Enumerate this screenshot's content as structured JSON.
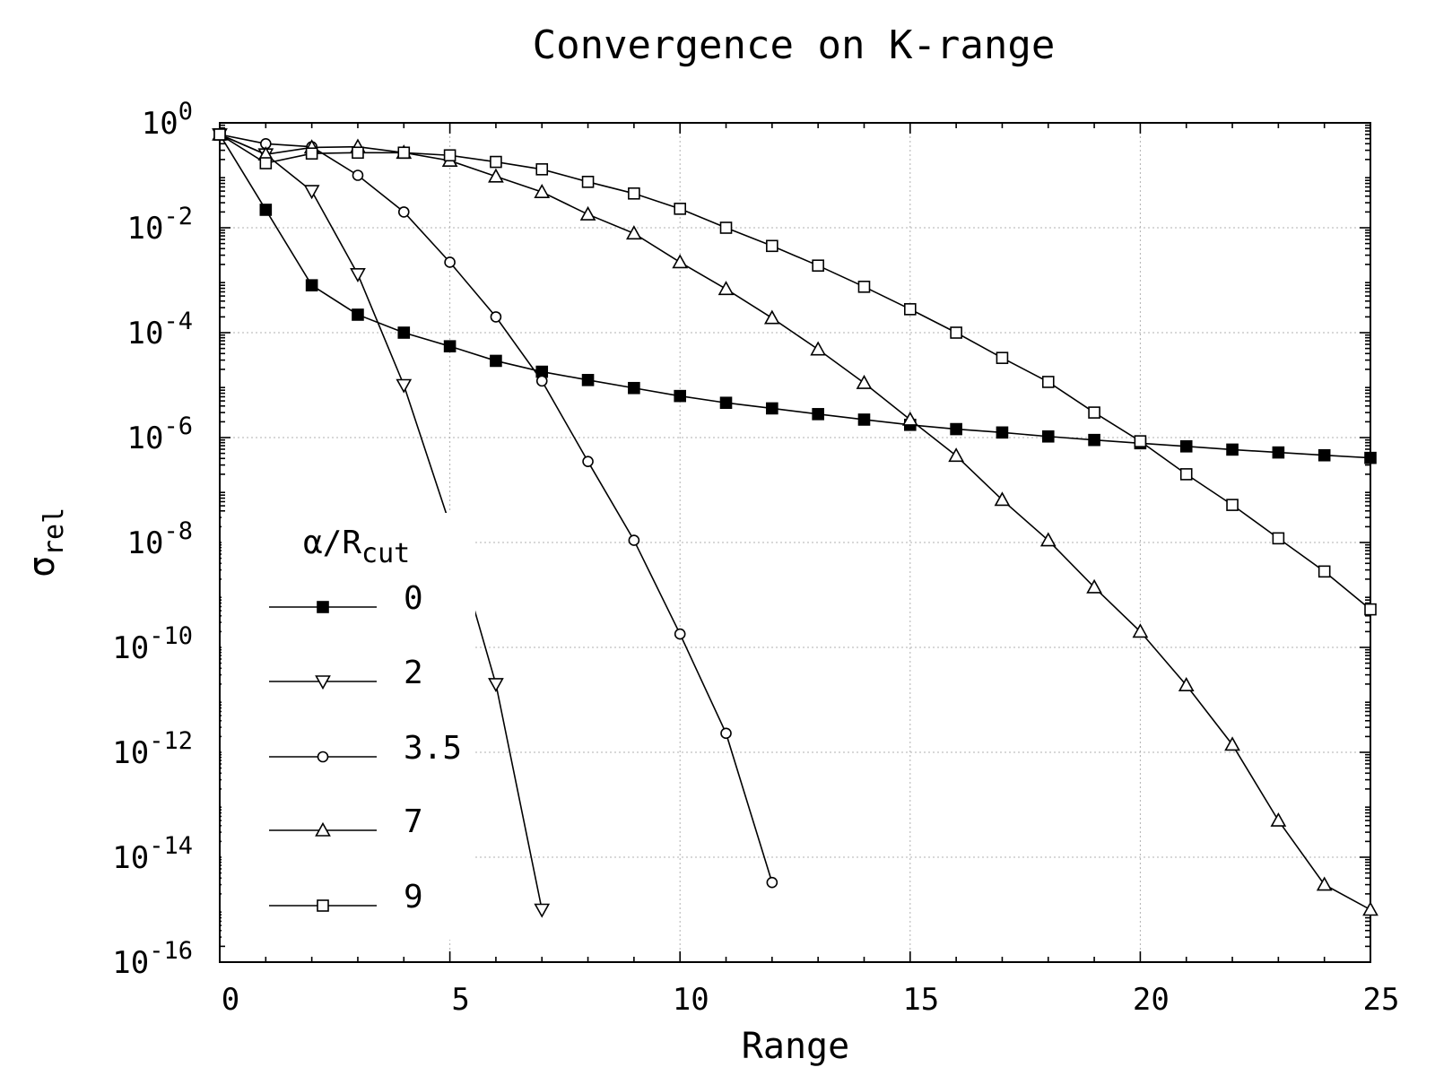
{
  "chart_data": {
    "type": "line",
    "title": "Convergence on K-range",
    "xlabel": "Range",
    "ylabel": {
      "main": "σ",
      "sub": "rel"
    },
    "xlim": [
      0,
      25
    ],
    "ylim": [
      1e-16,
      1
    ],
    "yscale": "log",
    "grid": true,
    "x_ticks": [
      "0",
      "5",
      "10",
      "15",
      "20",
      "25"
    ],
    "y_ticks": [
      {
        "value": 1,
        "base": "10",
        "exp": "0"
      },
      {
        "value": 0.01,
        "base": "10",
        "exp": "-2"
      },
      {
        "value": 0.0001,
        "base": "10",
        "exp": "-4"
      },
      {
        "value": 1e-06,
        "base": "10",
        "exp": "-6"
      },
      {
        "value": 1e-08,
        "base": "10",
        "exp": "-8"
      },
      {
        "value": 1e-10,
        "base": "10",
        "exp": "-10"
      },
      {
        "value": 1e-12,
        "base": "10",
        "exp": "-12"
      },
      {
        "value": 1e-14,
        "base": "10",
        "exp": "-14"
      },
      {
        "value": 1e-16,
        "base": "10",
        "exp": "-16"
      }
    ],
    "legend": {
      "title_main": "α/R",
      "title_sub": "cut",
      "placement": "bottom-left"
    },
    "series": [
      {
        "name": "0",
        "marker": "filled-square",
        "x": [
          0,
          1,
          2,
          3,
          4,
          5,
          6,
          7,
          8,
          9,
          10,
          11,
          12,
          13,
          14,
          15,
          16,
          17,
          18,
          19,
          20,
          21,
          22,
          23,
          24,
          25
        ],
        "y": [
          0.6,
          0.022,
          0.0008,
          0.00022,
          0.0001,
          5.5e-05,
          2.9e-05,
          1.8e-05,
          1.25e-05,
          8.8e-06,
          6.2e-06,
          4.6e-06,
          3.6e-06,
          2.8e-06,
          2.2e-06,
          1.75e-06,
          1.45e-06,
          1.25e-06,
          1.05e-06,
          9e-07,
          7.8e-07,
          6.8e-07,
          5.9e-07,
          5.2e-07,
          4.6e-07,
          4.1e-07
        ]
      },
      {
        "name": "2",
        "marker": "triangle-down",
        "x": [
          0,
          1,
          2,
          3,
          4,
          5,
          6,
          7
        ],
        "y": [
          0.6,
          0.25,
          0.05,
          0.0013,
          1e-05,
          2.2e-08,
          2e-11,
          1e-15
        ]
      },
      {
        "name": "3.5",
        "marker": "circle",
        "x": [
          0,
          1,
          2,
          3,
          4,
          5,
          6,
          7,
          8,
          9,
          10,
          11,
          12
        ],
        "y": [
          0.6,
          0.4,
          0.35,
          0.1,
          0.02,
          0.0022,
          0.0002,
          1.2e-05,
          3.5e-07,
          1.1e-08,
          1.8e-10,
          2.3e-12,
          3.3e-15
        ]
      },
      {
        "name": "7",
        "marker": "triangle-up",
        "x": [
          0,
          1,
          2,
          3,
          4,
          5,
          6,
          7,
          8,
          9,
          10,
          11,
          12,
          13,
          14,
          15,
          16,
          17,
          18,
          19,
          20,
          21,
          22,
          23,
          24,
          25
        ],
        "y": [
          0.6,
          0.25,
          0.34,
          0.35,
          0.27,
          0.19,
          0.095,
          0.048,
          0.018,
          0.0078,
          0.0022,
          0.00068,
          0.00019,
          4.8e-05,
          1.1e-05,
          2.2e-06,
          4.5e-07,
          6.5e-08,
          1.1e-08,
          1.4e-09,
          2e-10,
          1.9e-11,
          1.4e-12,
          5e-14,
          3e-15,
          1e-15
        ]
      },
      {
        "name": "9",
        "marker": "square",
        "x": [
          0,
          1,
          2,
          3,
          4,
          5,
          6,
          7,
          8,
          9,
          10,
          11,
          12,
          13,
          14,
          15,
          16,
          17,
          18,
          19,
          20,
          21,
          22,
          23,
          24,
          25
        ],
        "y": [
          0.6,
          0.17,
          0.26,
          0.27,
          0.27,
          0.24,
          0.18,
          0.13,
          0.075,
          0.045,
          0.023,
          0.01,
          0.0045,
          0.0019,
          0.00075,
          0.00028,
          0.0001,
          3.3e-05,
          1.15e-05,
          3e-06,
          8.5e-07,
          2e-07,
          5.2e-08,
          1.2e-08,
          2.8e-09,
          5.3e-10
        ]
      }
    ]
  }
}
